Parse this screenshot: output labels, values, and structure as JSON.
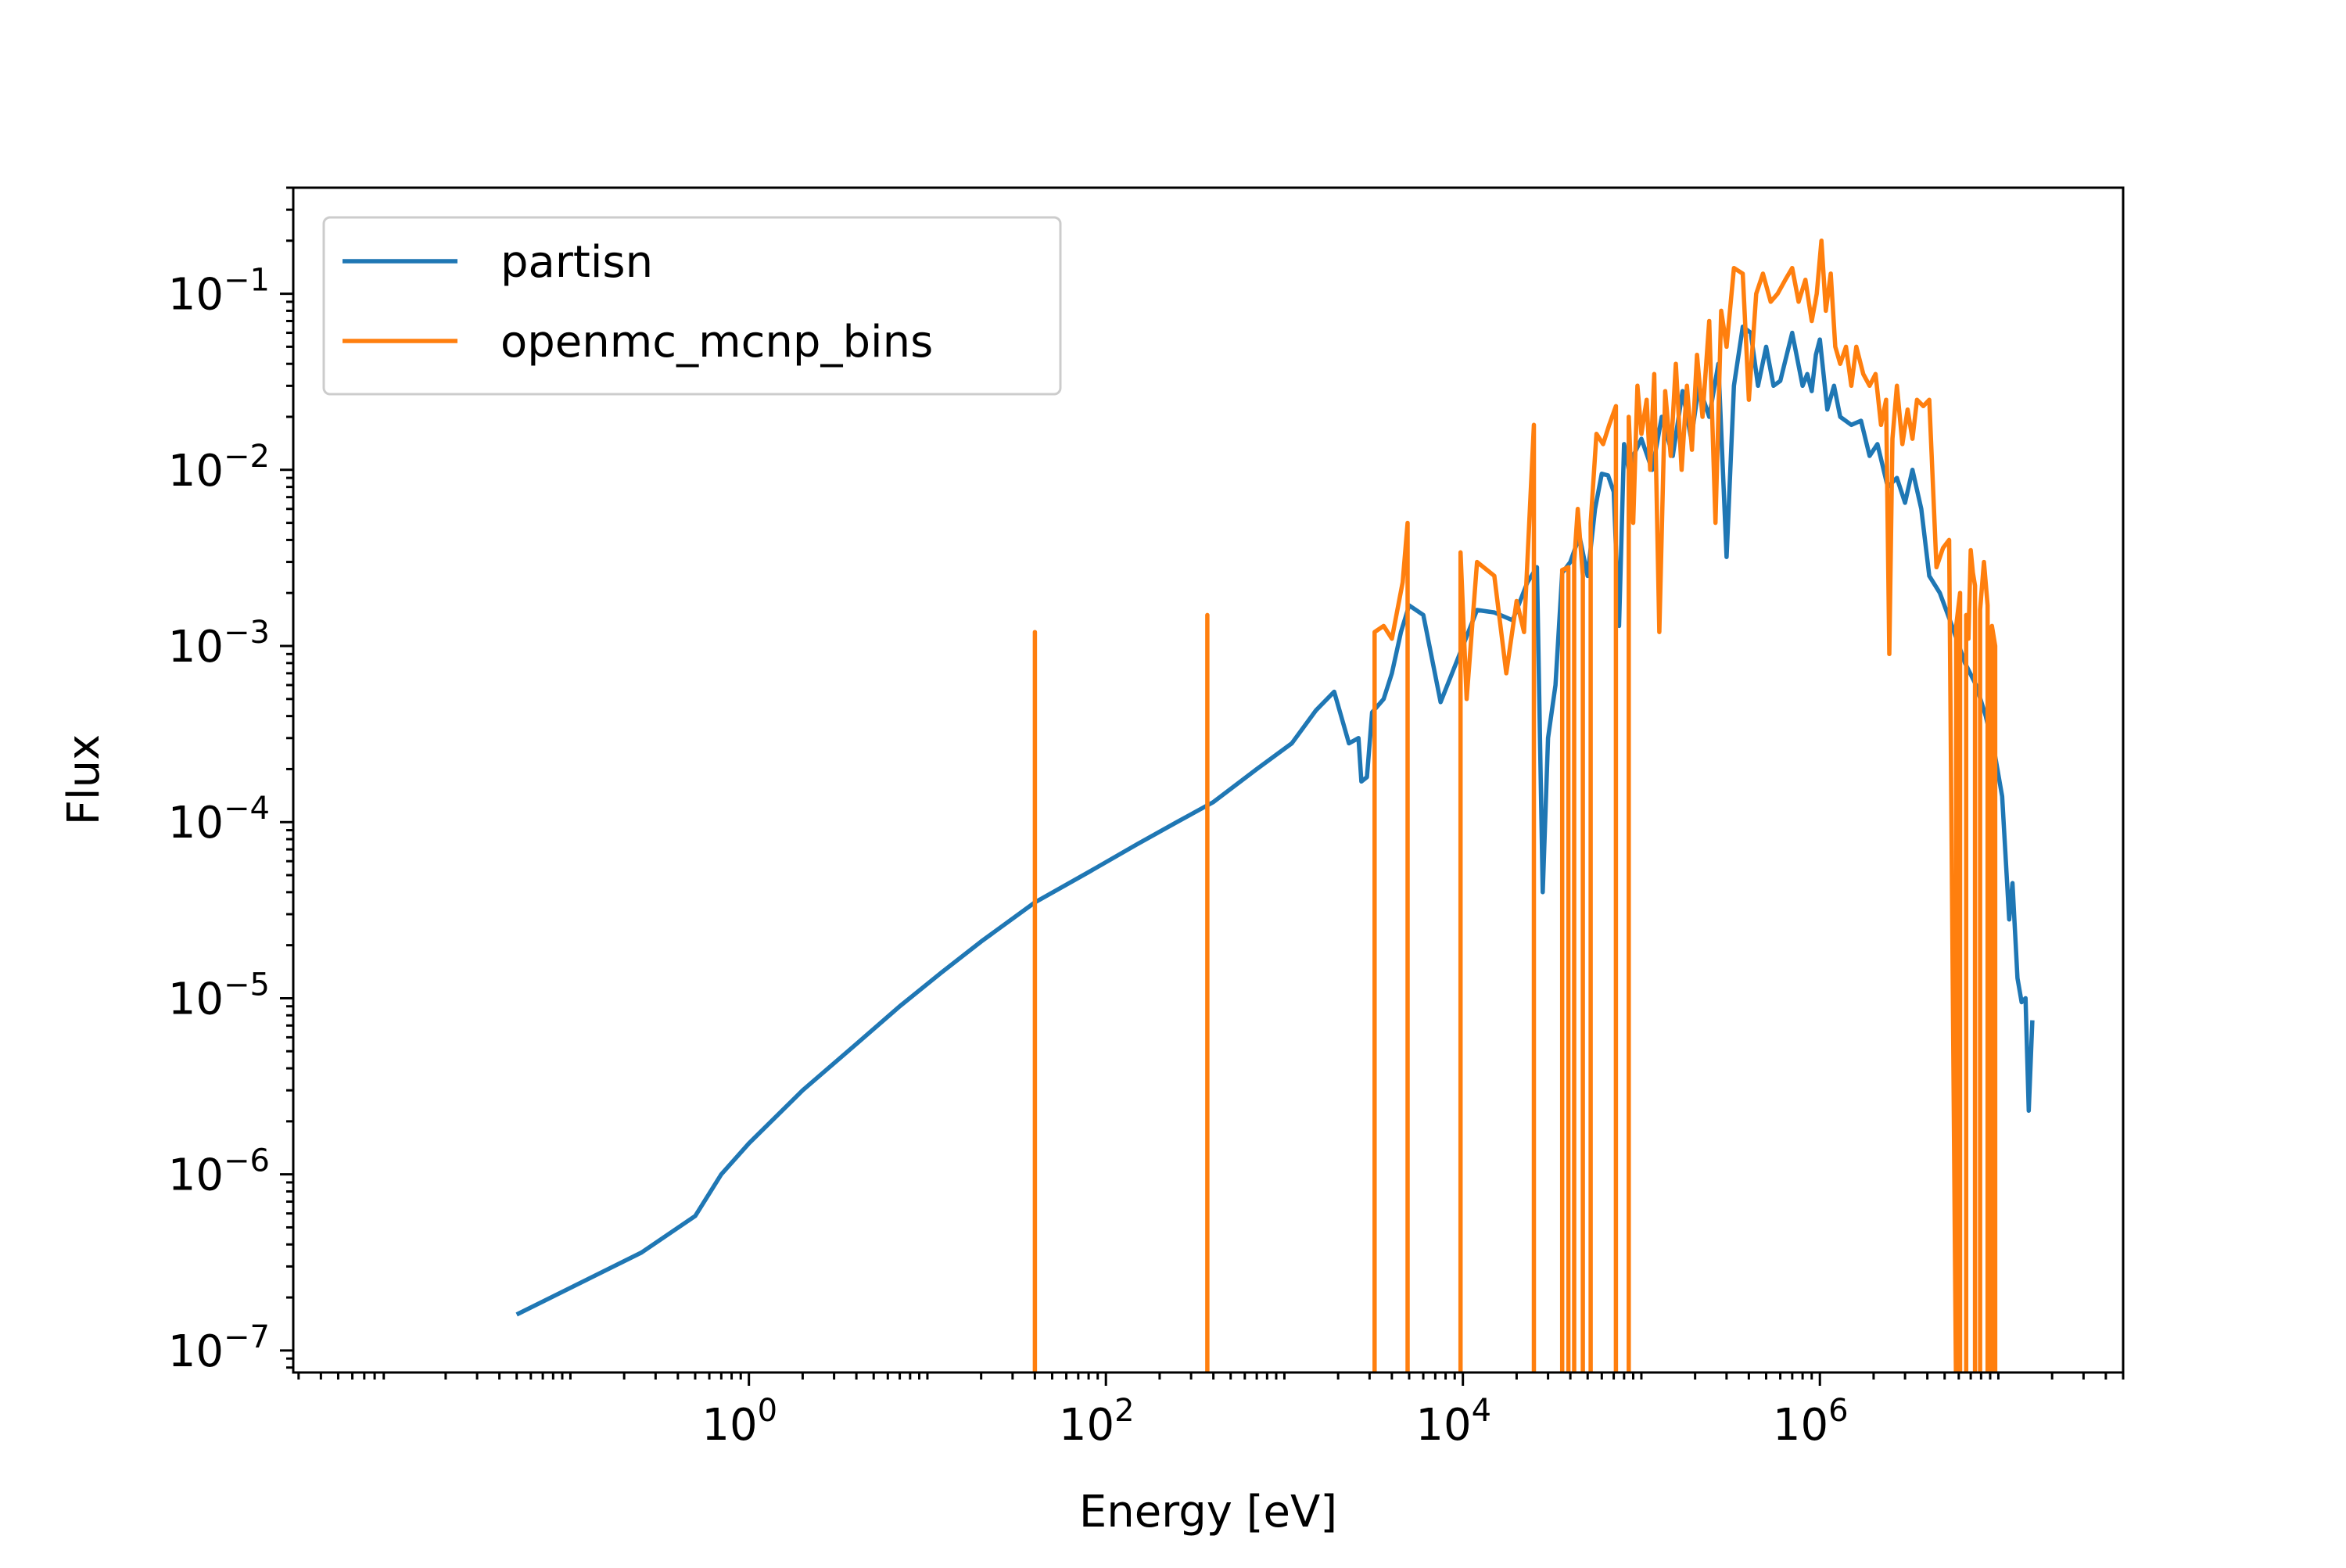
{
  "chart_data": {
    "type": "line",
    "title": "",
    "xlabel": "Energy [eV]",
    "ylabel": "Flux",
    "xscale": "log",
    "yscale": "log",
    "xlim": [
      0.0028,
      50000000
    ],
    "ylim": [
      7.5e-08,
      0.4
    ],
    "grid": false,
    "legend_position": "top-left",
    "x_ticks": [
      {
        "value": 1,
        "base": "10",
        "exp": "0"
      },
      {
        "value": 100,
        "base": "10",
        "exp": "2"
      },
      {
        "value": 10000,
        "base": "10",
        "exp": "4"
      },
      {
        "value": 1000000,
        "base": "10",
        "exp": "6"
      }
    ],
    "y_ticks": [
      {
        "value": 1e-07,
        "base": "10",
        "exp": "−7"
      },
      {
        "value": 1e-06,
        "base": "10",
        "exp": "−6"
      },
      {
        "value": 1e-05,
        "base": "10",
        "exp": "−5"
      },
      {
        "value": 0.0001,
        "base": "10",
        "exp": "−4"
      },
      {
        "value": 0.001,
        "base": "10",
        "exp": "−3"
      },
      {
        "value": 0.01,
        "base": "10",
        "exp": "−2"
      },
      {
        "value": 0.1,
        "base": "10",
        "exp": "−1"
      }
    ],
    "series": [
      {
        "name": "partisn",
        "color": "#1f77b4",
        "points": [
          [
            0.05,
            1.6e-07
          ],
          [
            0.25,
            3.6e-07
          ],
          [
            0.5,
            5.8e-07
          ],
          [
            0.7,
            1e-06
          ],
          [
            1.0,
            1.5e-06
          ],
          [
            2.0,
            3e-06
          ],
          [
            4.0,
            5.5e-06
          ],
          [
            7.0,
            9e-06
          ],
          [
            12,
            1.4e-05
          ],
          [
            20,
            2.1e-05
          ],
          [
            40,
            3.5e-05
          ],
          [
            80,
            5.2e-05
          ],
          [
            150,
            7.5e-05
          ],
          [
            250,
            0.0001
          ],
          [
            400,
            0.00013
          ],
          [
            700,
            0.0002
          ],
          [
            1100,
            0.00028
          ],
          [
            1500,
            0.00043
          ],
          [
            1900,
            0.00055
          ],
          [
            2300,
            0.00028
          ],
          [
            2600,
            0.0003
          ],
          [
            2700,
            0.00017
          ],
          [
            2900,
            0.00018
          ],
          [
            3100,
            0.00042
          ],
          [
            3600,
            0.0005
          ],
          [
            4000,
            0.0007
          ],
          [
            4500,
            0.0012
          ],
          [
            5000,
            0.0017
          ],
          [
            6000,
            0.0015
          ],
          [
            7500,
            0.00048
          ],
          [
            10000,
            0.001
          ],
          [
            12000,
            0.0016
          ],
          [
            15000,
            0.00155
          ],
          [
            19000,
            0.0014
          ],
          [
            23000,
            0.0023
          ],
          [
            26000,
            0.0028
          ],
          [
            28000,
            4e-05
          ],
          [
            30000,
            0.0003
          ],
          [
            33000,
            0.0006
          ],
          [
            36000,
            0.0026
          ],
          [
            40000,
            0.003
          ],
          [
            45000,
            0.0042
          ],
          [
            50000,
            0.0025
          ],
          [
            55000,
            0.006
          ],
          [
            60000,
            0.0095
          ],
          [
            65000,
            0.0093
          ],
          [
            70000,
            0.0075
          ],
          [
            75000,
            0.0013
          ],
          [
            80000,
            0.014
          ],
          [
            85000,
            0.01
          ],
          [
            90000,
            0.012
          ],
          [
            100000,
            0.015
          ],
          [
            115000,
            0.01
          ],
          [
            130000,
            0.02
          ],
          [
            150000,
            0.012
          ],
          [
            170000,
            0.028
          ],
          [
            190000,
            0.015
          ],
          [
            210000,
            0.03
          ],
          [
            240000,
            0.02
          ],
          [
            270000,
            0.04
          ],
          [
            300000,
            0.0032
          ],
          [
            330000,
            0.03
          ],
          [
            370000,
            0.065
          ],
          [
            410000,
            0.06
          ],
          [
            450000,
            0.03
          ],
          [
            500000,
            0.05
          ],
          [
            550000,
            0.03
          ],
          [
            600000,
            0.032
          ],
          [
            700000,
            0.06
          ],
          [
            800000,
            0.03
          ],
          [
            850000,
            0.035
          ],
          [
            900000,
            0.028
          ],
          [
            950000,
            0.045
          ],
          [
            1000000,
            0.055
          ],
          [
            1100000,
            0.022
          ],
          [
            1200000,
            0.03
          ],
          [
            1300000,
            0.02
          ],
          [
            1500000,
            0.018
          ],
          [
            1700000,
            0.019
          ],
          [
            1900000,
            0.012
          ],
          [
            2100000,
            0.014
          ],
          [
            2400000,
            0.008
          ],
          [
            2700000,
            0.009
          ],
          [
            3000000,
            0.0065
          ],
          [
            3300000,
            0.01
          ],
          [
            3700000,
            0.006
          ],
          [
            4100000,
            0.0025
          ],
          [
            4700000,
            0.002
          ],
          [
            5500000,
            0.0013
          ],
          [
            6500000,
            0.0008
          ],
          [
            7500000,
            0.0006
          ],
          [
            8500000,
            0.0004
          ],
          [
            9500000,
            0.00025
          ],
          [
            10500000,
            0.00014
          ],
          [
            11500000,
            2.8e-05
          ],
          [
            12000000,
            4.5e-05
          ],
          [
            12800000,
            1.3e-05
          ],
          [
            13500000,
            9.5e-06
          ],
          [
            14200000,
            1e-05
          ],
          [
            14800000,
            2.3e-06
          ],
          [
            15500000,
            7.5e-06
          ]
        ]
      },
      {
        "name": "openmc_mcnp_bins",
        "color": "#ff7f0e",
        "points": [
          [
            40,
            0
          ],
          [
            40,
            0.0012
          ],
          [
            40,
            0
          ],
          [
            370,
            0
          ],
          [
            370,
            0.0015
          ],
          [
            370,
            0
          ],
          [
            3200,
            0
          ],
          [
            3200,
            0.0012
          ],
          [
            3600,
            0.0013
          ],
          [
            4000,
            0.0011
          ],
          [
            4600,
            0.0023
          ],
          [
            4900,
            0.005
          ],
          [
            4900,
            0
          ],
          [
            9700,
            0
          ],
          [
            9700,
            0.0034
          ],
          [
            10500,
            0.0005
          ],
          [
            12000,
            0.003
          ],
          [
            15000,
            0.0025
          ],
          [
            17500,
            0.0007
          ],
          [
            20000,
            0.0018
          ],
          [
            22000,
            0.0012
          ],
          [
            25000,
            0.018
          ],
          [
            25000,
            0
          ],
          [
            36000,
            0
          ],
          [
            36000,
            0.0027
          ],
          [
            39000,
            0.0028
          ],
          [
            39000,
            0
          ],
          [
            42000,
            0
          ],
          [
            42000,
            0.003
          ],
          [
            44000,
            0.006
          ],
          [
            47000,
            0.0025
          ],
          [
            47000,
            0
          ],
          [
            52000,
            0
          ],
          [
            52000,
            0.005
          ],
          [
            56000,
            0.016
          ],
          [
            61000,
            0.014
          ],
          [
            66000,
            0.018
          ],
          [
            72000,
            0.023
          ],
          [
            72000,
            0
          ],
          [
            85000,
            0
          ],
          [
            85000,
            0.02
          ],
          [
            90000,
            0.005
          ],
          [
            95000,
            0.03
          ],
          [
            100000,
            0.016
          ],
          [
            107000,
            0.025
          ],
          [
            112000,
            0.01
          ],
          [
            118000,
            0.035
          ],
          [
            126000,
            0.0012
          ],
          [
            136000,
            0.028
          ],
          [
            146000,
            0.012
          ],
          [
            156000,
            0.04
          ],
          [
            168000,
            0.01
          ],
          [
            180000,
            0.03
          ],
          [
            192000,
            0.013
          ],
          [
            205000,
            0.045
          ],
          [
            220000,
            0.02
          ],
          [
            240000,
            0.07
          ],
          [
            260000,
            0.005
          ],
          [
            280000,
            0.08
          ],
          [
            300000,
            0.05
          ],
          [
            330000,
            0.14
          ],
          [
            370000,
            0.13
          ],
          [
            400000,
            0.025
          ],
          [
            440000,
            0.1
          ],
          [
            480000,
            0.13
          ],
          [
            530000,
            0.09
          ],
          [
            580000,
            0.1
          ],
          [
            640000,
            0.12
          ],
          [
            700000,
            0.14
          ],
          [
            760000,
            0.09
          ],
          [
            830000,
            0.12
          ],
          [
            900000,
            0.07
          ],
          [
            960000,
            0.1
          ],
          [
            1020000,
            0.2
          ],
          [
            1080000,
            0.08
          ],
          [
            1150000,
            0.13
          ],
          [
            1220000,
            0.05
          ],
          [
            1300000,
            0.04
          ],
          [
            1400000,
            0.05
          ],
          [
            1500000,
            0.03
          ],
          [
            1600000,
            0.05
          ],
          [
            1750000,
            0.035
          ],
          [
            1900000,
            0.03
          ],
          [
            2050000,
            0.035
          ],
          [
            2200000,
            0.018
          ],
          [
            2350000,
            0.025
          ],
          [
            2450000,
            0.0009
          ],
          [
            2550000,
            0.015
          ],
          [
            2700000,
            0.03
          ],
          [
            2900000,
            0.014
          ],
          [
            3100000,
            0.022
          ],
          [
            3300000,
            0.015
          ],
          [
            3500000,
            0.025
          ],
          [
            3800000,
            0.023
          ],
          [
            4100000,
            0.025
          ],
          [
            4500000,
            0.0028
          ],
          [
            4900000,
            0.0036
          ],
          [
            5300000,
            0.004
          ],
          [
            5800000,
            0
          ],
          [
            5800000,
            0.0013
          ],
          [
            6100000,
            0.002
          ],
          [
            6100000,
            0
          ],
          [
            6600000,
            0
          ],
          [
            6600000,
            0.0015
          ],
          [
            6800000,
            0.0011
          ],
          [
            7000000,
            0.0035
          ],
          [
            7200000,
            0.0026
          ],
          [
            7400000,
            0.0022
          ],
          [
            7400000,
            0
          ],
          [
            7900000,
            0
          ],
          [
            7900000,
            0.0016
          ],
          [
            8300000,
            0.003
          ],
          [
            8700000,
            0.0017
          ],
          [
            8700000,
            0
          ],
          [
            9200000,
            0
          ],
          [
            9200000,
            0.0013
          ],
          [
            9600000,
            0.001
          ],
          [
            9600000,
            0
          ]
        ]
      }
    ]
  }
}
